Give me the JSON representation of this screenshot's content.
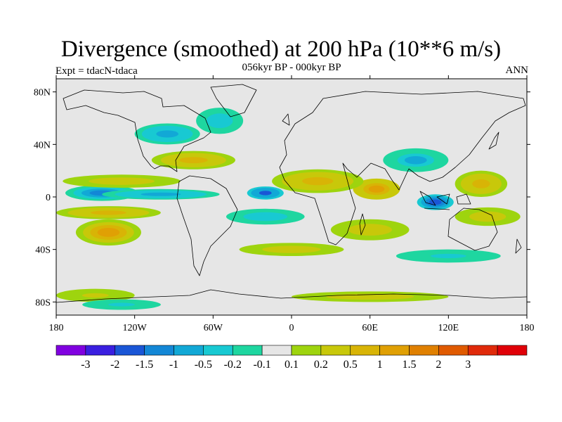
{
  "title": "Divergence (smoothed) at 200 hPa (10**6 m/s)",
  "left_label": "Expt = tdacN-tdaca",
  "center_label": "056kyr BP - 000kyr BP",
  "right_label": "ANN",
  "map": {
    "projection": "cylindrical-equidistant",
    "lon_range": [
      -180,
      180
    ],
    "lat_range": [
      -90,
      90
    ],
    "lat_ticks": [
      {
        "value": 80,
        "label": "80N"
      },
      {
        "value": 40,
        "label": "40N"
      },
      {
        "value": 0,
        "label": "0"
      },
      {
        "value": -40,
        "label": "40S"
      },
      {
        "value": -80,
        "label": "80S"
      }
    ],
    "lon_ticks": [
      {
        "value": -180,
        "label": "180"
      },
      {
        "value": -120,
        "label": "120W"
      },
      {
        "value": -60,
        "label": "60W"
      },
      {
        "value": 0,
        "label": "0"
      },
      {
        "value": 60,
        "label": "60E"
      },
      {
        "value": 120,
        "label": "120E"
      },
      {
        "value": 180,
        "label": "180"
      }
    ],
    "background_color": "#e6e6e6"
  },
  "colorbar": {
    "colors": [
      "#8000e0",
      "#3a1fe0",
      "#1a56d6",
      "#1387d6",
      "#12a8d6",
      "#18c9d2",
      "#1ed6a0",
      "#e6e6e6",
      "#9ed40e",
      "#c8c80a",
      "#d8b406",
      "#e0a004",
      "#e08000",
      "#e05a00",
      "#e02a0a",
      "#e00008"
    ],
    "labels": [
      "-3",
      "-2",
      "-1.5",
      "-1",
      "-0.5",
      "-0.2",
      "-0.1",
      "0.1",
      "0.2",
      "0.5",
      "1",
      "1.5",
      "2",
      "3"
    ]
  },
  "chart_data": {
    "type": "heatmap",
    "title": "Divergence (smoothed) at 200 hPa (10**6 m/s)",
    "subtitle": "056kyr BP - 000kyr BP",
    "experiment": "Expt = tdacN-tdaca",
    "season": "ANN",
    "units": "10**6 m/s",
    "levels": [
      -3,
      -2,
      -1.5,
      -1,
      -0.5,
      -0.2,
      -0.1,
      0.1,
      0.2,
      0.5,
      1,
      1.5,
      2,
      3
    ],
    "features": [
      {
        "lon": -145,
        "lat": 3,
        "rx": 28,
        "ry": 6,
        "value": -1.0
      },
      {
        "lon": -100,
        "lat": 2,
        "rx": 45,
        "ry": 4,
        "value": -0.7
      },
      {
        "lon": -20,
        "lat": 3,
        "rx": 14,
        "ry": 5,
        "value": -1.5
      },
      {
        "lon": -130,
        "lat": 12,
        "rx": 45,
        "ry": 5,
        "value": 0.5
      },
      {
        "lon": -140,
        "lat": -12,
        "rx": 40,
        "ry": 5,
        "value": 0.6
      },
      {
        "lon": -140,
        "lat": -27,
        "rx": 25,
        "ry": 10,
        "value": 1.3
      },
      {
        "lon": -75,
        "lat": 28,
        "rx": 32,
        "ry": 7,
        "value": 0.8
      },
      {
        "lon": -95,
        "lat": 48,
        "rx": 25,
        "ry": 8,
        "value": -0.6
      },
      {
        "lon": -55,
        "lat": 58,
        "rx": 18,
        "ry": 10,
        "value": -0.4
      },
      {
        "lon": 65,
        "lat": 6,
        "rx": 18,
        "ry": 8,
        "value": 1.4
      },
      {
        "lon": 20,
        "lat": 12,
        "rx": 35,
        "ry": 9,
        "value": 0.6
      },
      {
        "lon": 110,
        "lat": -4,
        "rx": 14,
        "ry": 6,
        "value": -1.8
      },
      {
        "lon": 95,
        "lat": 28,
        "rx": 25,
        "ry": 9,
        "value": -0.5
      },
      {
        "lon": 145,
        "lat": 10,
        "rx": 20,
        "ry": 10,
        "value": 0.8
      },
      {
        "lon": 150,
        "lat": -15,
        "rx": 25,
        "ry": 7,
        "value": 0.5
      },
      {
        "lon": 60,
        "lat": -25,
        "rx": 30,
        "ry": 8,
        "value": 0.5
      },
      {
        "lon": -20,
        "lat": -15,
        "rx": 30,
        "ry": 6,
        "value": -0.4
      },
      {
        "lon": 0,
        "lat": -40,
        "rx": 40,
        "ry": 5,
        "value": 0.4
      },
      {
        "lon": 120,
        "lat": -45,
        "rx": 40,
        "ry": 5,
        "value": -0.3
      },
      {
        "lon": -150,
        "lat": -75,
        "rx": 30,
        "ry": 5,
        "value": 0.3
      },
      {
        "lon": 60,
        "lat": -76,
        "rx": 60,
        "ry": 4,
        "value": 0.4
      },
      {
        "lon": -130,
        "lat": -82,
        "rx": 30,
        "ry": 4,
        "value": -0.3
      }
    ]
  }
}
